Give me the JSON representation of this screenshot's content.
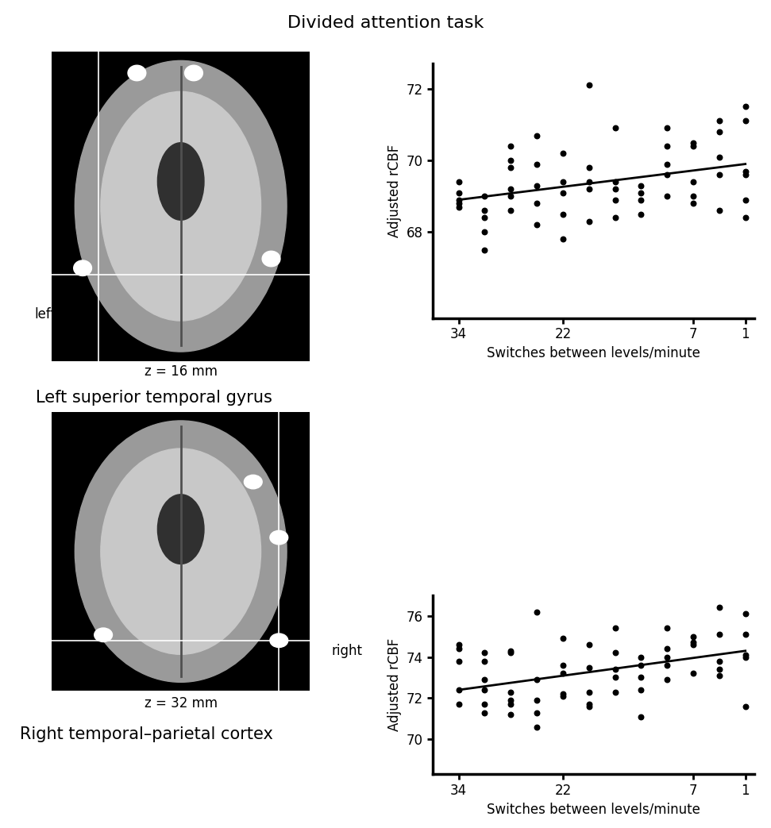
{
  "figure_title": "Divided attention task",
  "images": [
    {
      "side_label": "left",
      "z_label": "z = 16 mm",
      "region": "Left superior temporal gyrus"
    },
    {
      "side_label": "right",
      "z_label": "z = 32 mm",
      "region": "Right temporal–parietal cortex"
    }
  ],
  "chart_data": [
    {
      "type": "scatter",
      "color": "#000000",
      "marker": "o",
      "x_label": "Switches between levels/minute",
      "y_label": "Adjusted rCBF",
      "xlim": [
        37,
        0
      ],
      "xticks": [
        34,
        22,
        7,
        1
      ],
      "ylim": [
        65.6,
        72.7
      ],
      "yticks": [
        68,
        70,
        72
      ],
      "x": [
        34,
        34,
        34,
        34,
        34,
        31,
        31,
        31,
        31,
        31,
        28,
        28,
        28,
        28,
        28,
        28,
        25,
        25,
        25,
        25,
        25,
        22,
        22,
        22,
        22,
        22,
        19,
        19,
        19,
        19,
        19,
        16,
        16,
        16,
        16,
        16,
        13,
        13,
        13,
        13,
        10,
        10,
        10,
        10,
        10,
        7,
        7,
        7,
        7,
        7,
        4,
        4,
        4,
        4,
        4,
        1,
        1,
        1,
        1,
        1,
        1
      ],
      "values": [
        69.4,
        69.1,
        68.9,
        68.8,
        68.7,
        69.0,
        68.6,
        68.4,
        68.0,
        67.5,
        70.4,
        70.0,
        69.8,
        69.2,
        69.0,
        68.6,
        70.7,
        69.9,
        69.3,
        68.8,
        68.2,
        70.2,
        69.4,
        69.1,
        68.5,
        67.8,
        72.1,
        69.8,
        69.4,
        69.2,
        68.3,
        70.9,
        69.4,
        69.2,
        68.9,
        68.4,
        69.3,
        69.1,
        68.9,
        68.5,
        70.9,
        70.4,
        69.9,
        69.6,
        69.0,
        70.5,
        70.4,
        69.4,
        69.0,
        68.8,
        71.1,
        70.8,
        70.1,
        69.6,
        68.6,
        71.5,
        71.1,
        69.7,
        69.6,
        68.9,
        68.4
      ],
      "fit": {
        "x": [
          34,
          1
        ],
        "values": [
          68.9,
          69.9
        ]
      }
    },
    {
      "type": "scatter",
      "color": "#000000",
      "marker": "o",
      "x_label": "Switches between levels/minute",
      "y_label": "Adjusted rCBF",
      "xlim": [
        37,
        0
      ],
      "xticks": [
        34,
        22,
        7,
        1
      ],
      "ylim": [
        68.3,
        77.0
      ],
      "yticks": [
        70,
        72,
        74,
        76
      ],
      "x": [
        34,
        34,
        34,
        34,
        34,
        31,
        31,
        31,
        31,
        31,
        31,
        28,
        28,
        28,
        28,
        28,
        28,
        25,
        25,
        25,
        25,
        25,
        22,
        22,
        22,
        22,
        22,
        19,
        19,
        19,
        19,
        19,
        16,
        16,
        16,
        16,
        16,
        13,
        13,
        13,
        13,
        13,
        10,
        10,
        10,
        10,
        10,
        7,
        7,
        7,
        7,
        4,
        4,
        4,
        4,
        4,
        1,
        1,
        1,
        1,
        1
      ],
      "values": [
        74.6,
        74.4,
        73.8,
        72.4,
        71.7,
        74.2,
        73.8,
        72.9,
        72.4,
        71.7,
        71.3,
        74.3,
        74.2,
        72.3,
        71.9,
        71.7,
        71.2,
        76.2,
        72.9,
        71.9,
        71.3,
        70.6,
        74.9,
        73.6,
        73.2,
        72.2,
        72.1,
        74.6,
        73.5,
        72.3,
        71.7,
        71.6,
        75.4,
        74.2,
        73.4,
        73.0,
        72.3,
        74.0,
        73.6,
        73.0,
        72.4,
        71.1,
        75.4,
        74.4,
        74.0,
        73.6,
        72.9,
        75.0,
        74.7,
        74.6,
        73.2,
        76.4,
        75.1,
        73.8,
        73.4,
        73.1,
        76.1,
        75.1,
        74.1,
        74.0,
        71.6
      ],
      "fit": {
        "x": [
          34,
          1
        ],
        "values": [
          72.4,
          74.3
        ]
      }
    }
  ]
}
